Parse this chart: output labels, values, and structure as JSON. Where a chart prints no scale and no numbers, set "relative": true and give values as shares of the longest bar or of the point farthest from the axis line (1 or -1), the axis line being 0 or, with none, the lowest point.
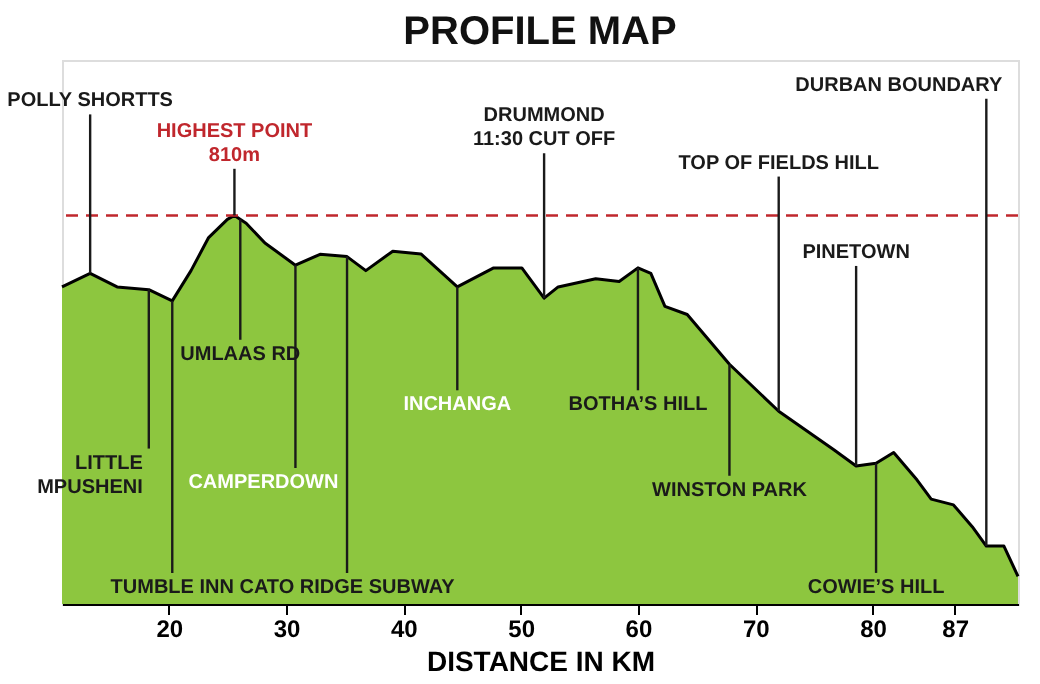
{
  "chart_data": {
    "type": "area",
    "title": "PROFILE MAP",
    "xlabel": "DISTANCE IN KM",
    "relative": true,
    "x": [
      10.9,
      13.3,
      15.6,
      18.3,
      20.3,
      21.9,
      23.4,
      25.0,
      25.6,
      26.6,
      28.2,
      30.8,
      32.9,
      35.2,
      36.8,
      39.1,
      41.5,
      44.6,
      47.7,
      50.1,
      52.0,
      53.2,
      56.4,
      58.4,
      60.0,
      61.1,
      62.3,
      64.2,
      67.8,
      72.0,
      76.7,
      78.6,
      80.3,
      81.8,
      83.8,
      85.0,
      86.9,
      88.5,
      89.7,
      91.2,
      92.4
    ],
    "series": [
      {
        "color": "#8dc63f",
        "values": [
          0.816,
          0.851,
          0.816,
          0.809,
          0.78,
          0.858,
          0.943,
          0.99,
          1.0,
          0.98,
          0.929,
          0.872,
          0.9,
          0.894,
          0.858,
          0.908,
          0.901,
          0.816,
          0.865,
          0.865,
          0.787,
          0.816,
          0.837,
          0.83,
          0.865,
          0.851,
          0.766,
          0.745,
          0.617,
          0.496,
          0.397,
          0.355,
          0.362,
          0.39,
          0.319,
          0.27,
          0.255,
          0.199,
          0.149,
          0.149,
          0.071
        ]
      }
    ],
    "xlim": [
      10.9,
      92.4
    ],
    "xticks": [
      20,
      30,
      40,
      50,
      60,
      70,
      80,
      87
    ],
    "grid": false,
    "ref_lines": [
      {
        "axis": "y",
        "value": 1.0,
        "color": "#c0272d",
        "line_style": "dashed"
      }
    ],
    "annotations": [
      {
        "text": "POLLY SHORTTS",
        "x": 13.3,
        "y": 0.851
      },
      {
        "text": "HIGHEST POINT\n810m",
        "x": 25.6,
        "y": 1.0
      },
      {
        "text": "DRUMMOND\n11:30 CUT OFF",
        "x": 52.0,
        "y": 0.787
      },
      {
        "text": "TOP OF FIELDS HILL",
        "x": 72.0,
        "y": 0.496
      },
      {
        "text": "PINETOWN",
        "x": 78.6,
        "y": 0.355
      },
      {
        "text": "DURBAN BOUNDARY",
        "x": 89.7,
        "y": 0.149
      },
      {
        "text": "LITTLE\nMPUSHENI",
        "x": 18.3,
        "y": 0.809
      },
      {
        "text": "TUMBLE INN",
        "x": 20.3,
        "y": 0.78
      },
      {
        "text": "UMLAAS RD",
        "x": 26.1,
        "y": 0.99
      },
      {
        "text": "CAMPERDOWN",
        "x": 30.8,
        "y": 0.872
      },
      {
        "text": "CATO RIDGE SUBWAY",
        "x": 35.2,
        "y": 0.894
      },
      {
        "text": "INCHANGA",
        "x": 44.6,
        "y": 0.816
      },
      {
        "text": "BOTHA’S HILL",
        "x": 60.0,
        "y": 0.865
      },
      {
        "text": "WINSTON PARK",
        "x": 67.8,
        "y": 0.617
      },
      {
        "text": "COWIE’S HILL",
        "x": 80.3,
        "y": 0.362
      }
    ]
  }
}
